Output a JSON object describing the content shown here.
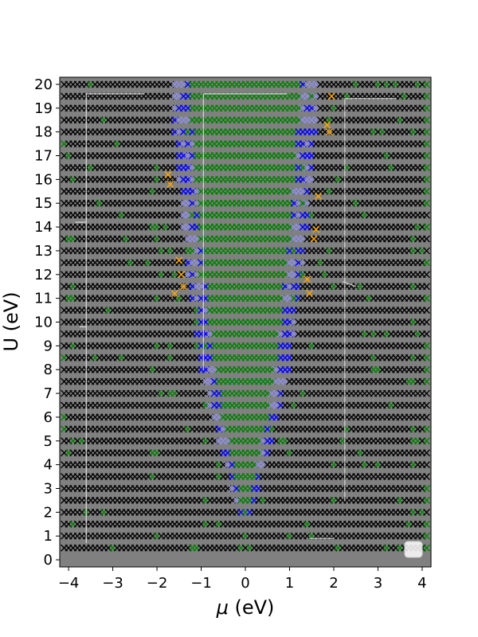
{
  "chart_data": {
    "type": "scatter",
    "xlabel_symbol": "μ",
    "xlabel_unit": " (eV)",
    "ylabel": "U (eV)",
    "xlim": [
      -4.2,
      4.2
    ],
    "ylim": [
      -0.3,
      20.3
    ],
    "xticks": [
      -4,
      -3,
      -2,
      -1,
      0,
      1,
      2,
      3,
      4
    ],
    "yticks": [
      0,
      1,
      2,
      3,
      4,
      5,
      6,
      7,
      8,
      9,
      10,
      11,
      12,
      13,
      14,
      15,
      16,
      17,
      18,
      19,
      20
    ],
    "marker": "x",
    "grid_step": {
      "mu": 0.1,
      "U": 0.5
    },
    "colors": {
      "background": "#808080",
      "black_phase": "#000000",
      "green_phase": "#008000",
      "blue_phase": "#0000ff",
      "blue_light": "#8f8fe6",
      "orange_phase": "#ffa500",
      "white_line": "#d8d8d8"
    },
    "regions": {
      "green_center_halfwidth": [
        [
          2,
          0.05
        ],
        [
          3,
          0.15
        ],
        [
          4,
          0.25
        ],
        [
          6,
          0.5
        ],
        [
          8,
          0.68
        ],
        [
          10,
          0.8
        ],
        [
          12,
          0.93
        ],
        [
          14,
          1.03
        ],
        [
          16,
          1.12
        ],
        [
          18,
          1.2
        ],
        [
          20,
          1.25
        ]
      ],
      "blue_band_width": [
        [
          2,
          0.1
        ],
        [
          4,
          0.22
        ],
        [
          8,
          0.32
        ],
        [
          12,
          0.38
        ],
        [
          20,
          0.42
        ]
      ],
      "blue_start_U": 1.8,
      "outer_black_columns": [
        -4.0,
        -2.0,
        2.0,
        3.9
      ],
      "inner_black_columns": [
        -1.0,
        1.0
      ],
      "inner_columns_max_U": 6.5,
      "green_edge_columns": [
        -4.1,
        4.1
      ],
      "orange_points": [
        [
          -1.5,
          12.6
        ],
        [
          -1.45,
          12.0
        ],
        [
          -1.4,
          11.5
        ],
        [
          -1.6,
          11.2
        ],
        [
          -1.7,
          15.8
        ],
        [
          -1.75,
          16.2
        ],
        [
          1.45,
          11.2
        ],
        [
          1.4,
          11.8
        ],
        [
          1.55,
          13.5
        ],
        [
          1.6,
          13.9
        ],
        [
          1.65,
          15.3
        ],
        [
          1.85,
          18.3
        ],
        [
          1.9,
          18.0
        ],
        [
          1.95,
          19.5
        ]
      ]
    },
    "legend_placement": "bottom-right",
    "grid": false
  }
}
